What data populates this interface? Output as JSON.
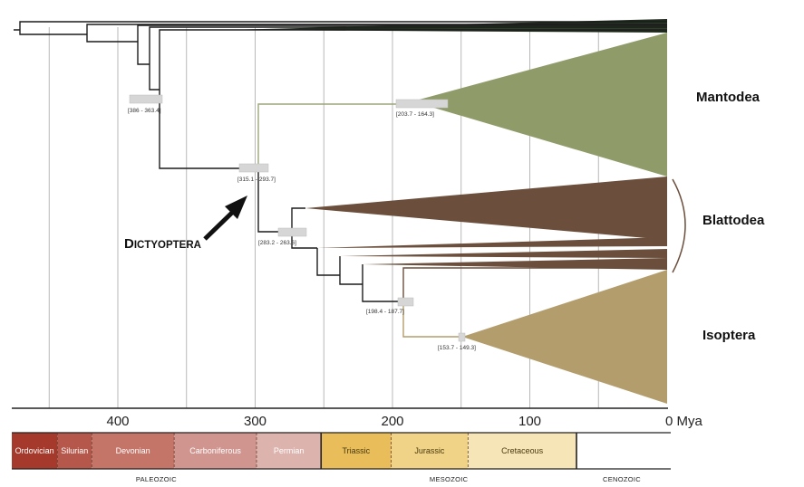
{
  "axis": {
    "ticks": [
      {
        "mya": 400,
        "label": "400"
      },
      {
        "mya": 300,
        "label": "300"
      },
      {
        "mya": 200,
        "label": "200"
      },
      {
        "mya": 100,
        "label": "100"
      },
      {
        "mya": 0,
        "label": "0 Mya"
      }
    ],
    "gridlines_mya": [
      450,
      400,
      350,
      300,
      250,
      200,
      150,
      100,
      50
    ]
  },
  "clades": {
    "mantodea": "Mantodea",
    "blattodea": "Blattodea",
    "isoptera": "Isoptera"
  },
  "annotation": {
    "dictyoptera_initial": "D",
    "dictyoptera_rest": "ICTYOPTERA"
  },
  "node_ages": {
    "root_outgroup": "[386 - 363.4]",
    "dictyoptera": "[315.1 - 293.7]",
    "mantodea": "[203.7 - 164.3]",
    "blattodea": "[283.2 - 263.6]",
    "termite_relatives": "[198.4 - 187.7]",
    "isoptera": "[153.7 - 149.3]"
  },
  "periods": [
    {
      "name": "Ordovician",
      "start": 485,
      "end": 444,
      "color": "#a53a2c"
    },
    {
      "name": "Silurian",
      "start": 444,
      "end": 419,
      "color": "#b5574a"
    },
    {
      "name": "Devonian",
      "start": 419,
      "end": 359,
      "color": "#c57468"
    },
    {
      "name": "Carboniferous",
      "start": 359,
      "end": 299,
      "color": "#d19590"
    },
    {
      "name": "Permian",
      "start": 299,
      "end": 252,
      "color": "#ddb3ae"
    },
    {
      "name": "Triassic",
      "start": 252,
      "end": 201,
      "color": "#e8bd5a"
    },
    {
      "name": "Jurassic",
      "start": 201,
      "end": 145,
      "color": "#f0d386"
    },
    {
      "name": "Cretaceous",
      "start": 145,
      "end": 66,
      "color": "#f6e5b6"
    },
    {
      "name": "",
      "start": 66,
      "end": 0,
      "color": "#ffffff"
    }
  ],
  "eras": [
    {
      "name": "PALEOZOIC",
      "mya": 372
    },
    {
      "name": "MESOZOIC",
      "mya": 159
    },
    {
      "name": "CENOZOIC",
      "mya": 33
    }
  ],
  "colors": {
    "mantodea": "#8f9c6a",
    "blattodea": "#6b4f3c",
    "isoptera": "#b49d6c",
    "branch": "#1c1c1c",
    "ci_bar": "#d6d6d6",
    "gridline": "#b0b0b0"
  }
}
